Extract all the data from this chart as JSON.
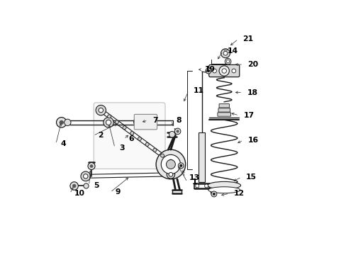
{
  "background_color": "#ffffff",
  "line_color": "#1a1a1a",
  "figsize": [
    4.89,
    3.6
  ],
  "dpi": 100,
  "callouts": {
    "1": {
      "part": [
        0.515,
        0.355
      ],
      "label": [
        0.555,
        0.285
      ],
      "ha": "left"
    },
    "2": {
      "part": [
        0.285,
        0.518
      ],
      "label": [
        0.185,
        0.468
      ],
      "ha": "left"
    },
    "3": {
      "part": [
        0.245,
        0.52
      ],
      "label": [
        0.27,
        0.42
      ],
      "ha": "left"
    },
    "4": {
      "part": [
        0.06,
        0.525
      ],
      "label": [
        0.038,
        0.435
      ],
      "ha": "left"
    },
    "5": {
      "part": [
        0.175,
        0.34
      ],
      "label": [
        0.168,
        0.272
      ],
      "ha": "left"
    },
    "6": {
      "part": [
        0.33,
        0.475
      ],
      "label": [
        0.305,
        0.455
      ],
      "ha": "left"
    },
    "7": {
      "part": [
        0.37,
        0.52
      ],
      "label": [
        0.4,
        0.528
      ],
      "ha": "left"
    },
    "8": {
      "part": [
        0.503,
        0.497
      ],
      "label": [
        0.492,
        0.528
      ],
      "ha": "left"
    },
    "9": {
      "part": [
        0.33,
        0.308
      ],
      "label": [
        0.252,
        0.245
      ],
      "ha": "left"
    },
    "10": {
      "part": [
        0.11,
        0.272
      ],
      "label": [
        0.093,
        0.24
      ],
      "ha": "left"
    },
    "11": {
      "part": [
        0.538,
        0.595
      ],
      "label": [
        0.56,
        0.645
      ],
      "ha": "left"
    },
    "12": {
      "part": [
        0.68,
        0.232
      ],
      "label": [
        0.72,
        0.24
      ],
      "ha": "left"
    },
    "13": {
      "part": [
        0.535,
        0.34
      ],
      "label": [
        0.545,
        0.302
      ],
      "ha": "left"
    },
    "14": {
      "part": [
        0.67,
        0.762
      ],
      "label": [
        0.695,
        0.8
      ],
      "ha": "left"
    },
    "15": {
      "part": [
        0.73,
        0.285
      ],
      "label": [
        0.768,
        0.305
      ],
      "ha": "left"
    },
    "16": {
      "part": [
        0.745,
        0.435
      ],
      "label": [
        0.775,
        0.45
      ],
      "ha": "left"
    },
    "17": {
      "part": [
        0.72,
        0.558
      ],
      "label": [
        0.758,
        0.548
      ],
      "ha": "left"
    },
    "18": {
      "part": [
        0.735,
        0.638
      ],
      "label": [
        0.772,
        0.638
      ],
      "ha": "left"
    },
    "19": {
      "part": [
        0.598,
        0.728
      ],
      "label": [
        0.605,
        0.728
      ],
      "ha": "left"
    },
    "20": {
      "part": [
        0.735,
        0.748
      ],
      "label": [
        0.775,
        0.748
      ],
      "ha": "left"
    },
    "21": {
      "part": [
        0.718,
        0.818
      ],
      "label": [
        0.755,
        0.848
      ],
      "ha": "left"
    }
  }
}
